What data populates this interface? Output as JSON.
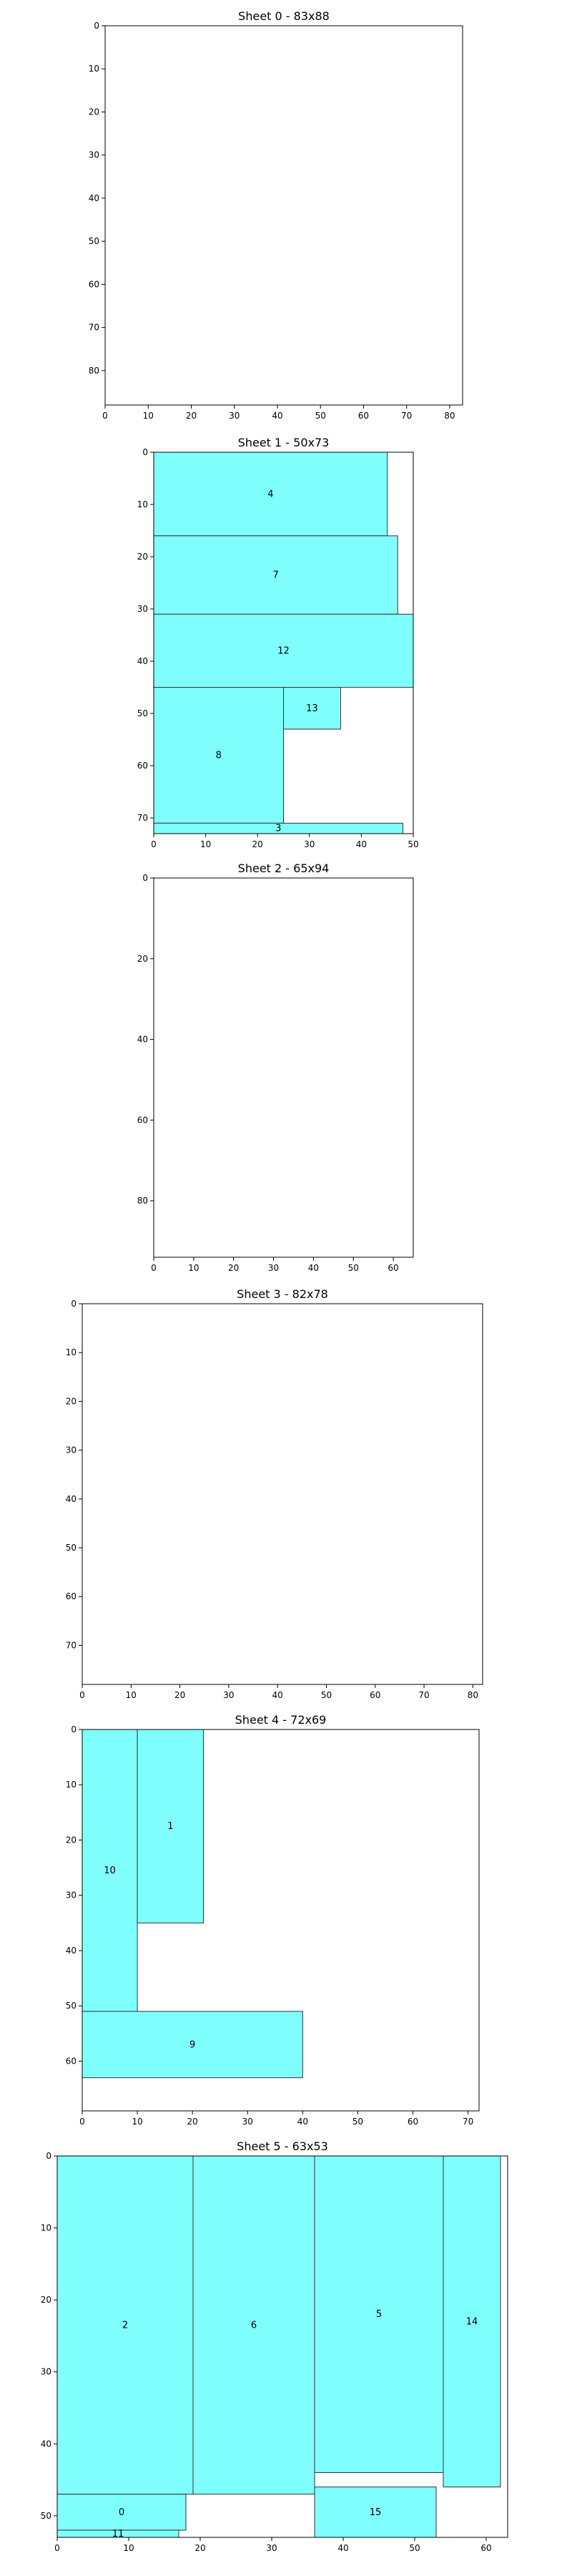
{
  "chart_data": [
    {
      "type": "rectangles",
      "title": "Sheet 0 - 83x88",
      "xlim": [
        0,
        83
      ],
      "ylim": [
        0,
        88
      ],
      "y_inverted": true,
      "xticks": [
        0,
        10,
        20,
        30,
        40,
        50,
        60,
        70,
        80
      ],
      "yticks": [
        0,
        10,
        20,
        30,
        40,
        50,
        60,
        70,
        80
      ],
      "rect_color": "#80ffff",
      "rects": []
    },
    {
      "type": "rectangles",
      "title": "Sheet 1 - 50x73",
      "xlim": [
        0,
        50
      ],
      "ylim": [
        0,
        73
      ],
      "y_inverted": true,
      "xticks": [
        0,
        10,
        20,
        30,
        40,
        50
      ],
      "yticks": [
        0,
        10,
        20,
        30,
        40,
        50,
        60,
        70
      ],
      "rect_color": "#80ffff",
      "rects": [
        {
          "label": "4",
          "x0": 0,
          "y0": 0,
          "x1": 45,
          "y1": 16
        },
        {
          "label": "7",
          "x0": 0,
          "y0": 16,
          "x1": 47,
          "y1": 31
        },
        {
          "label": "12",
          "x0": 0,
          "y0": 31,
          "x1": 50,
          "y1": 45
        },
        {
          "label": "13",
          "x0": 25,
          "y0": 45,
          "x1": 36,
          "y1": 53
        },
        {
          "label": "8",
          "x0": 0,
          "y0": 45,
          "x1": 25,
          "y1": 71
        },
        {
          "label": "3",
          "x0": 0,
          "y0": 71,
          "x1": 48,
          "y1": 73
        }
      ]
    },
    {
      "type": "rectangles",
      "title": "Sheet 2 - 65x94",
      "xlim": [
        0,
        65
      ],
      "ylim": [
        0,
        94
      ],
      "y_inverted": true,
      "xticks": [
        0,
        10,
        20,
        30,
        40,
        50,
        60
      ],
      "yticks": [
        0,
        20,
        40,
        60,
        80
      ],
      "rect_color": "#80ffff",
      "rects": []
    },
    {
      "type": "rectangles",
      "title": "Sheet 3 - 82x78",
      "xlim": [
        0,
        82
      ],
      "ylim": [
        0,
        78
      ],
      "y_inverted": true,
      "xticks": [
        0,
        10,
        20,
        30,
        40,
        50,
        60,
        70,
        80
      ],
      "yticks": [
        0,
        10,
        20,
        30,
        40,
        50,
        60,
        70
      ],
      "rect_color": "#80ffff",
      "rects": []
    },
    {
      "type": "rectangles",
      "title": "Sheet 4 - 72x69",
      "xlim": [
        0,
        72
      ],
      "ylim": [
        0,
        69
      ],
      "y_inverted": true,
      "xticks": [
        0,
        10,
        20,
        30,
        40,
        50,
        60,
        70
      ],
      "yticks": [
        0,
        10,
        20,
        30,
        40,
        50,
        60
      ],
      "rect_color": "#80ffff",
      "rects": [
        {
          "label": "10",
          "x0": 0,
          "y0": 0,
          "x1": 10,
          "y1": 51
        },
        {
          "label": "1",
          "x0": 10,
          "y0": 0,
          "x1": 22,
          "y1": 35
        },
        {
          "label": "9",
          "x0": 0,
          "y0": 51,
          "x1": 40,
          "y1": 63
        }
      ]
    },
    {
      "type": "rectangles",
      "title": "Sheet 5 - 63x53",
      "xlim": [
        0,
        63
      ],
      "ylim": [
        0,
        53
      ],
      "y_inverted": true,
      "xticks": [
        0,
        10,
        20,
        30,
        40,
        50,
        60
      ],
      "yticks": [
        0,
        10,
        20,
        30,
        40,
        50
      ],
      "rect_color": "#80ffff",
      "rects": [
        {
          "label": "2",
          "x0": 0,
          "y0": 0,
          "x1": 19,
          "y1": 47
        },
        {
          "label": "6",
          "x0": 19,
          "y0": 0,
          "x1": 36,
          "y1": 47
        },
        {
          "label": "5",
          "x0": 36,
          "y0": 0,
          "x1": 54,
          "y1": 44
        },
        {
          "label": "14",
          "x0": 54,
          "y0": 0,
          "x1": 62,
          "y1": 46
        },
        {
          "label": "0",
          "x0": 0,
          "y0": 47,
          "x1": 18,
          "y1": 52
        },
        {
          "label": "15",
          "x0": 36,
          "y0": 46,
          "x1": 53,
          "y1": 53
        },
        {
          "label": "11",
          "x0": 0,
          "y0": 52,
          "x1": 17,
          "y1": 53
        }
      ]
    }
  ]
}
